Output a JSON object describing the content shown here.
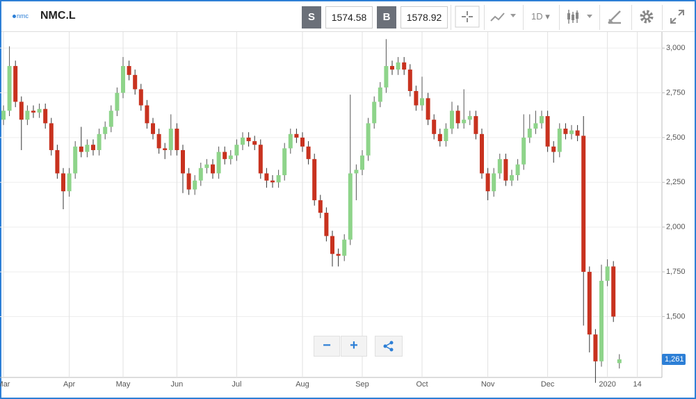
{
  "toolbar": {
    "logo": "nmc",
    "symbol": "NMC.L",
    "sell_label": "S",
    "sell_price": 1574.58,
    "buy_label": "B",
    "buy_price": 1578.92,
    "interval": "1D"
  },
  "chart_data": {
    "type": "candlestick",
    "color_up": "#8ed48a",
    "color_down": "#c8321f",
    "grid": true,
    "ylim": [
      1160,
      3090
    ],
    "yticks": [
      {
        "value": 1500,
        "label": "1,500"
      },
      {
        "value": 1750,
        "label": "1,750"
      },
      {
        "value": 2000,
        "label": "2,000"
      },
      {
        "value": 2250,
        "label": "2,250"
      },
      {
        "value": 2500,
        "label": "2,500"
      },
      {
        "value": 2750,
        "label": "2,750"
      },
      {
        "value": 3000,
        "label": "3,000"
      }
    ],
    "last_price": {
      "value": 1261,
      "label": "1,261"
    },
    "categories": [
      "Mar",
      null,
      null,
      null,
      null,
      null,
      null,
      null,
      null,
      null,
      null,
      "Apr",
      null,
      null,
      null,
      null,
      null,
      null,
      null,
      null,
      "May",
      null,
      null,
      null,
      null,
      null,
      null,
      null,
      null,
      "Jun",
      null,
      null,
      null,
      null,
      null,
      null,
      null,
      null,
      null,
      "Jul",
      null,
      null,
      null,
      null,
      null,
      null,
      null,
      null,
      null,
      null,
      "Aug",
      null,
      null,
      null,
      null,
      null,
      null,
      null,
      null,
      null,
      "Sep",
      null,
      null,
      null,
      null,
      null,
      null,
      null,
      null,
      null,
      "Oct",
      null,
      null,
      null,
      null,
      null,
      null,
      null,
      null,
      null,
      null,
      "Nov",
      null,
      null,
      null,
      null,
      null,
      null,
      null,
      null,
      null,
      "Dec",
      null,
      null,
      null,
      null,
      null,
      null,
      null,
      null,
      null,
      "2020",
      null,
      null,
      null,
      null,
      "14",
      null
    ],
    "open": [
      2600,
      2650,
      2900,
      2700,
      2600,
      2650,
      2640,
      2660,
      2580,
      2430,
      2300,
      2200,
      2300,
      2450,
      2420,
      2460,
      2430,
      2520,
      2560,
      2650,
      2750,
      2900,
      2850,
      2770,
      2680,
      2580,
      2520,
      2440,
      2430,
      2550,
      2430,
      2300,
      2210,
      2260,
      2330,
      2350,
      2300,
      2420,
      2380,
      2400,
      2460,
      2500,
      2480,
      2460,
      2300,
      2260,
      2250,
      2290,
      2440,
      2520,
      2500,
      2450,
      2380,
      2150,
      2080,
      1950,
      1850,
      1840,
      1930,
      2300,
      2320,
      2400,
      2580,
      2700,
      2780,
      2900,
      2880,
      2920,
      2880,
      2760,
      2680,
      2720,
      2600,
      2520,
      2480,
      2550,
      2650,
      2580,
      2600,
      2620,
      2520,
      2300,
      2200,
      2300,
      2380,
      2260,
      2290,
      2350,
      2500,
      2550,
      2580,
      2620,
      2450,
      2420,
      2550,
      2520,
      2540,
      2510,
      1750,
      1400,
      1250,
      1700,
      1780,
      1240,
      null,
      null,
      null,
      null
    ],
    "high": [
      2680,
      3010,
      2930,
      2730,
      2680,
      2680,
      2690,
      2690,
      2610,
      2460,
      2330,
      2330,
      2480,
      2560,
      2490,
      2490,
      2550,
      2590,
      2680,
      2780,
      2950,
      2930,
      2880,
      2800,
      2710,
      2610,
      2550,
      2470,
      2630,
      2580,
      2460,
      2330,
      2290,
      2360,
      2380,
      2380,
      2450,
      2450,
      2430,
      2490,
      2530,
      2530,
      2510,
      2490,
      2330,
      2290,
      2320,
      2470,
      2550,
      2550,
      2530,
      2480,
      2410,
      2180,
      2110,
      1980,
      1880,
      1960,
      2740,
      2350,
      2430,
      2610,
      2730,
      2810,
      3050,
      2930,
      2950,
      2950,
      2910,
      2790,
      2840,
      2750,
      2630,
      2550,
      2580,
      2700,
      2680,
      2770,
      2650,
      2650,
      2550,
      2330,
      2330,
      2410,
      2410,
      2320,
      2380,
      2630,
      2630,
      2650,
      2650,
      2650,
      2480,
      2580,
      2580,
      2570,
      2570,
      2620,
      1780,
      1430,
      1790,
      1820,
      1810,
      1290,
      null,
      null,
      null,
      null
    ],
    "low": [
      2570,
      2620,
      2670,
      2430,
      2570,
      2610,
      2610,
      2550,
      2400,
      2270,
      2100,
      2170,
      2270,
      2390,
      2390,
      2400,
      2400,
      2490,
      2530,
      2620,
      2720,
      2820,
      2740,
      2650,
      2550,
      2490,
      2410,
      2380,
      2400,
      2400,
      2190,
      2180,
      2180,
      2230,
      2300,
      2270,
      2270,
      2350,
      2350,
      2370,
      2430,
      2450,
      2430,
      2270,
      2220,
      2220,
      2220,
      2260,
      2410,
      2470,
      2420,
      2350,
      2120,
      2050,
      1920,
      1780,
      1780,
      1810,
      1900,
      2150,
      2290,
      2370,
      2550,
      2670,
      2750,
      2850,
      2850,
      2850,
      2730,
      2650,
      2650,
      2570,
      2490,
      2450,
      2450,
      2520,
      2550,
      2550,
      2570,
      2490,
      2270,
      2150,
      2170,
      2270,
      2230,
      2230,
      2260,
      2320,
      2470,
      2520,
      2550,
      2420,
      2360,
      2390,
      2490,
      2490,
      2480,
      1450,
      1300,
      1130,
      1220,
      1670,
      1470,
      1210,
      null,
      null,
      null,
      null
    ],
    "close": [
      2650,
      2900,
      2700,
      2600,
      2650,
      2640,
      2660,
      2580,
      2430,
      2300,
      2200,
      2300,
      2450,
      2420,
      2460,
      2430,
      2520,
      2560,
      2650,
      2750,
      2900,
      2850,
      2770,
      2680,
      2580,
      2520,
      2440,
      2430,
      2550,
      2430,
      2300,
      2210,
      2260,
      2330,
      2350,
      2300,
      2420,
      2380,
      2400,
      2460,
      2500,
      2480,
      2460,
      2300,
      2260,
      2250,
      2290,
      2440,
      2520,
      2500,
      2450,
      2380,
      2150,
      2080,
      1950,
      1850,
      1840,
      1930,
      2300,
      2320,
      2400,
      2580,
      2700,
      2780,
      2900,
      2880,
      2920,
      2880,
      2760,
      2680,
      2720,
      2600,
      2520,
      2480,
      2550,
      2650,
      2580,
      2600,
      2620,
      2520,
      2300,
      2200,
      2300,
      2380,
      2260,
      2290,
      2350,
      2500,
      2550,
      2580,
      2620,
      2450,
      2420,
      2550,
      2520,
      2540,
      2510,
      1750,
      1400,
      1250,
      1700,
      1780,
      1500,
      1261,
      null,
      null,
      null,
      null
    ]
  }
}
